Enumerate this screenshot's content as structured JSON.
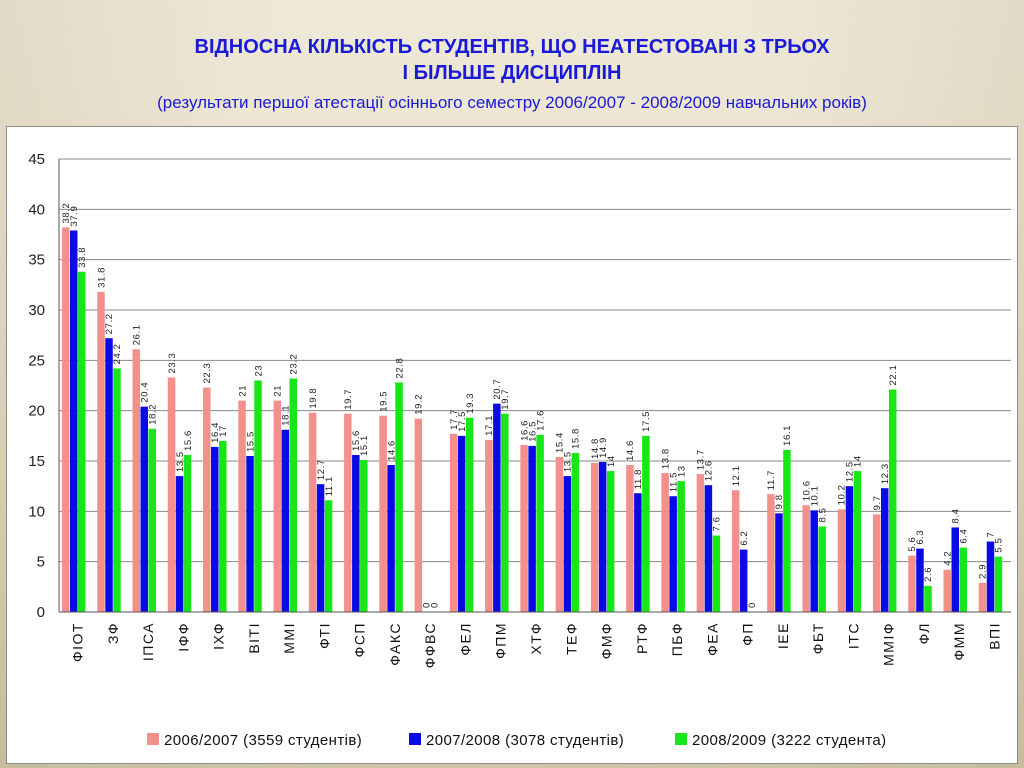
{
  "title_line1": "ВІДНОСНА КІЛЬКІСТЬ СТУДЕНТІВ, ЩО  НЕАТЕСТОВАНІ З ТРЬОХ",
  "title_line2": "І БІЛЬШЕ ДИСЦИПЛІН",
  "subtitle": "(результати першої атестації осіннього семестру 2006/2007 - 2008/2009 навчальних років)",
  "colors": {
    "series": [
      "#f4908c",
      "#0a0ae6",
      "#19e619"
    ],
    "title": "#1a1ad6",
    "grid": "#888888"
  },
  "chart_data": {
    "type": "bar",
    "categories": [
      "ФІОТ",
      "ЗФ",
      "ІПСА",
      "ІФФ",
      "ІХФ",
      "ВІТІ",
      "ММІ",
      "ФТІ",
      "ФСП",
      "ФАКС",
      "ФФВС",
      "ФЕЛ",
      "ФПМ",
      "ХТФ",
      "ТЕФ",
      "ФМФ",
      "РТФ",
      "ПБФ",
      "ФЕА",
      "ФП",
      "ІЕЕ",
      "ФБТ",
      "ІТС",
      "ММІФ",
      "ФЛ",
      "ФММ",
      "ВПІ"
    ],
    "series": [
      {
        "name": "2006/2007 (3559 студентів)",
        "values": [
          38.2,
          31.8,
          26.1,
          23.3,
          22.3,
          21,
          21,
          19.8,
          19.7,
          19.5,
          19.2,
          17.7,
          17.1,
          16.6,
          15.4,
          14.8,
          14.6,
          13.8,
          13.7,
          12.1,
          11.7,
          10.6,
          10.2,
          9.7,
          5.6,
          4.2,
          2.9
        ]
      },
      {
        "name": "2007/2008 (3078 студентів)",
        "values": [
          37.9,
          27.2,
          20.4,
          13.5,
          16.4,
          15.5,
          18.1,
          12.7,
          15.6,
          14.6,
          0,
          17.5,
          20.7,
          16.5,
          13.5,
          14.9,
          11.8,
          11.5,
          12.6,
          6.2,
          9.8,
          10.1,
          12.5,
          12.3,
          6.3,
          8.4,
          7
        ]
      },
      {
        "name": "2008/2009 (3222 студента)",
        "values": [
          33.8,
          24.2,
          18.2,
          15.6,
          17,
          23,
          23.2,
          11.1,
          15.1,
          22.8,
          0,
          19.3,
          19.7,
          17.6,
          15.8,
          14,
          17.5,
          13,
          7.6,
          0,
          16.1,
          8.5,
          14,
          22.1,
          2.6,
          6.4,
          5.5
        ]
      }
    ],
    "ylim": [
      0,
      45
    ],
    "yticks": [
      "0",
      "5",
      "10",
      "15",
      "20",
      "25",
      "30",
      "35",
      "40",
      "45"
    ],
    "grid": true,
    "legend": "bottom"
  }
}
